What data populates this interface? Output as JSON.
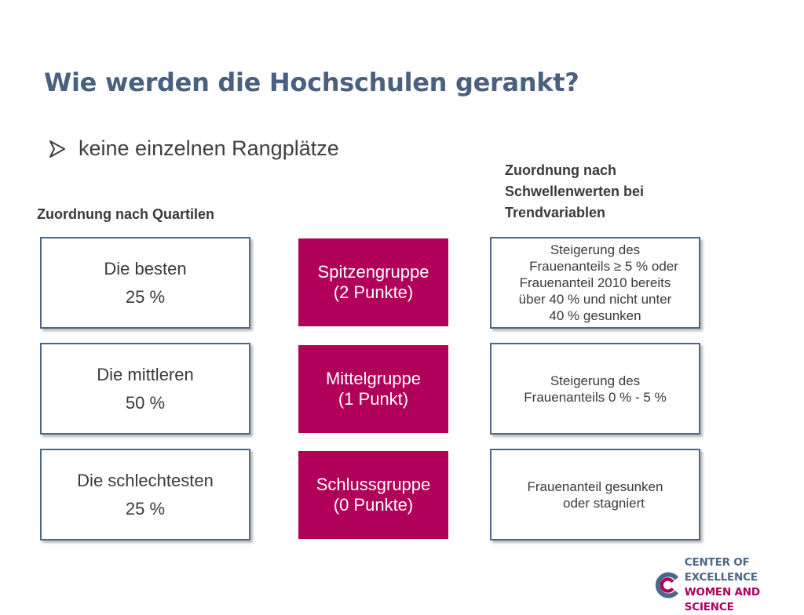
{
  "slide": {
    "title": "Wie werden die Hochschulen gerankt?",
    "bullet": "keine einzelnen Rangplätze"
  },
  "headers": {
    "left": "Zuordnung nach Quartilen",
    "right_lines": [
      "Zuordnung nach",
      "Schwellenwerten bei",
      "Trendvariablen"
    ]
  },
  "left_boxes": [
    {
      "line1": "Die besten",
      "line2": "25 %"
    },
    {
      "line1": "Die mittleren",
      "line2": "50 %"
    },
    {
      "line1": "Die schlechtesten",
      "line2": "25 %"
    }
  ],
  "middle_boxes": [
    {
      "line1": "Spitzengruppe",
      "line2": "(2 Punkte)"
    },
    {
      "line1": "Mittelgruppe",
      "line2": "(1 Punkt)"
    },
    {
      "line1": "Schlussgruppe",
      "line2": "(0 Punkte)"
    }
  ],
  "right_boxes": [
    {
      "lines": [
        "Steigerung des",
        "Frauenanteils ≥ 5 % oder",
        "Frauenanteil 2010 bereits",
        "über 40 % und nicht unter",
        "40 % gesunken"
      ]
    },
    {
      "lines": [
        "Steigerung des",
        "Frauenanteils 0 % - 5 %"
      ]
    },
    {
      "lines": [
        "Frauenanteil gesunken",
        "oder stagniert"
      ]
    }
  ],
  "logo": {
    "line1": "CENTER OF EXCELLENCE",
    "line2": "WOMEN AND SCIENCE"
  },
  "colors": {
    "title": "#4a6080",
    "accent_magenta": "#b0005a",
    "box_border": "#4d6886"
  },
  "icons": {
    "bullet": "arrow-bullet-icon",
    "logo": "cews-logo-icon"
  }
}
